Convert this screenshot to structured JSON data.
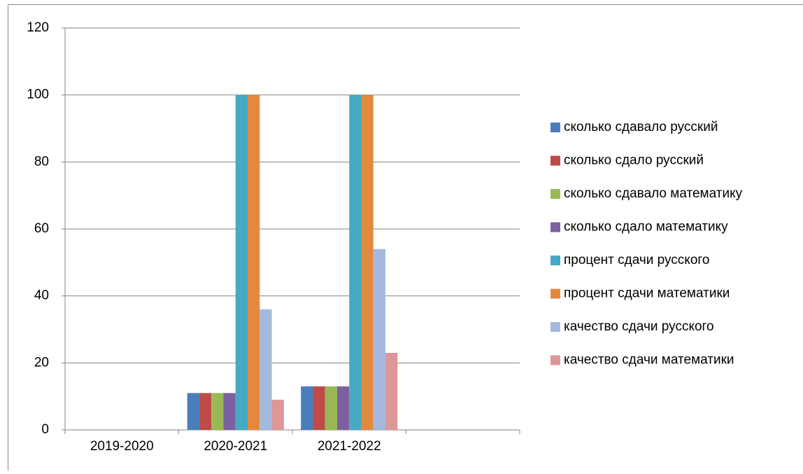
{
  "chart_data": {
    "type": "bar",
    "categories": [
      "2019-2020",
      "2020-2021",
      "2021-2022",
      null
    ],
    "series": [
      {
        "name": "сколько сдавало русский",
        "color": "#4a7ebb",
        "values": [
          null,
          11,
          13,
          null
        ]
      },
      {
        "name": "сколько сдало русский",
        "color": "#be4b48",
        "values": [
          null,
          11,
          13,
          null
        ]
      },
      {
        "name": "сколько сдавало математику",
        "color": "#98b954",
        "values": [
          null,
          11,
          13,
          null
        ]
      },
      {
        "name": "сколько сдало математику",
        "color": "#7d60a0",
        "values": [
          null,
          11,
          13,
          null
        ]
      },
      {
        "name": "процент сдачи русского",
        "color": "#46aac5",
        "values": [
          null,
          100,
          100,
          null
        ]
      },
      {
        "name": "процент сдачи математики",
        "color": "#e3893f",
        "values": [
          null,
          100,
          100,
          null
        ]
      },
      {
        "name": "качество сдачи русского",
        "color": "#a5b9de",
        "values": [
          null,
          36,
          54,
          null
        ]
      },
      {
        "name": "качество сдачи математики",
        "color": "#dc9796",
        "values": [
          null,
          9,
          23,
          null
        ]
      }
    ],
    "ylim": [
      0,
      120
    ],
    "yticks": [
      0,
      20,
      40,
      60,
      80,
      100,
      120
    ],
    "grid": true,
    "legend": "right"
  }
}
